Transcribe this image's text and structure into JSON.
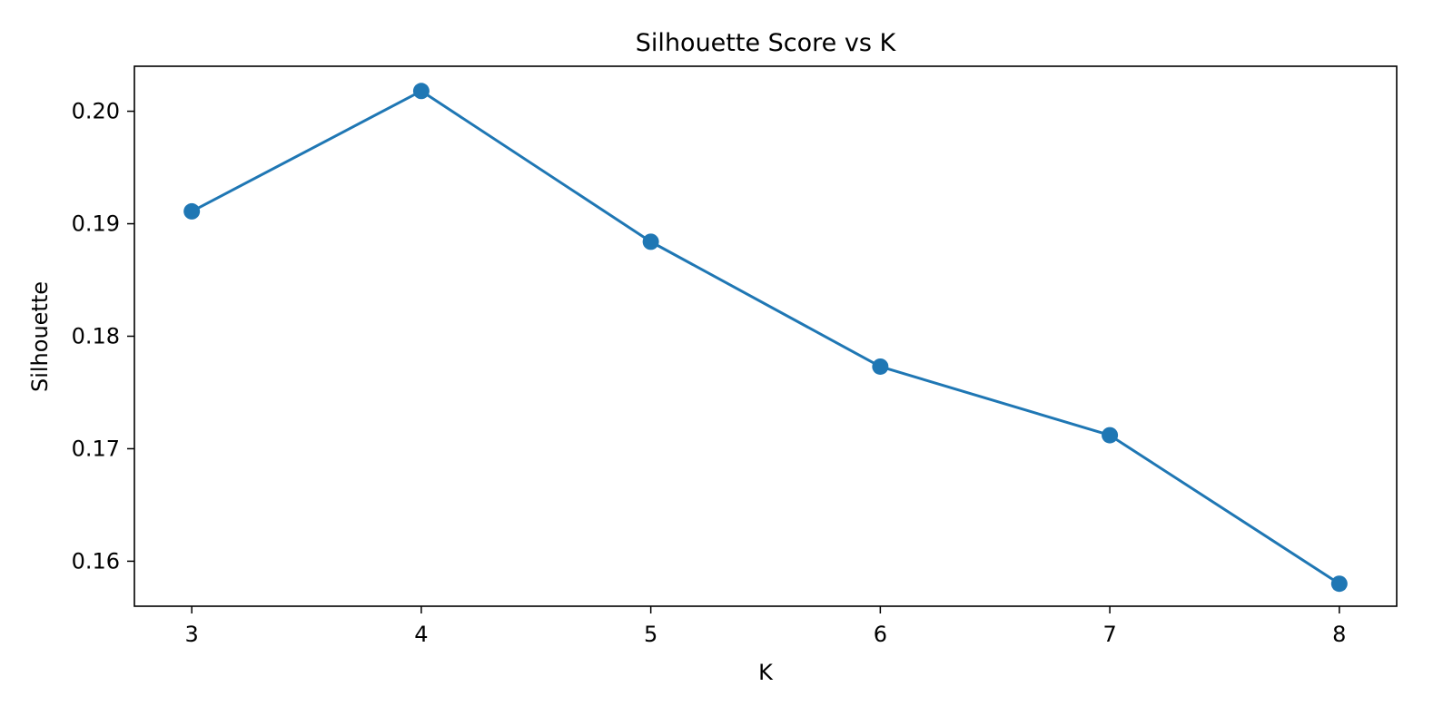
{
  "chart_data": {
    "type": "line",
    "title": "Silhouette Score vs K",
    "xlabel": "K",
    "ylabel": "Silhouette",
    "x": [
      3,
      4,
      5,
      6,
      7,
      8
    ],
    "xticks": [
      "3",
      "4",
      "5",
      "6",
      "7",
      "8"
    ],
    "yticks": [
      "0.16",
      "0.17",
      "0.18",
      "0.19",
      "0.20"
    ],
    "ytick_values": [
      0.16,
      0.17,
      0.18,
      0.19,
      0.2
    ],
    "xlim": [
      2.75,
      8.25
    ],
    "ylim": [
      0.156,
      0.204
    ],
    "series": [
      {
        "values": [
          0.1911,
          0.2018,
          0.1884,
          0.1773,
          0.1712,
          0.158
        ],
        "color": "#1f77b4",
        "marker": "circle"
      }
    ],
    "grid": false,
    "legend": false
  }
}
